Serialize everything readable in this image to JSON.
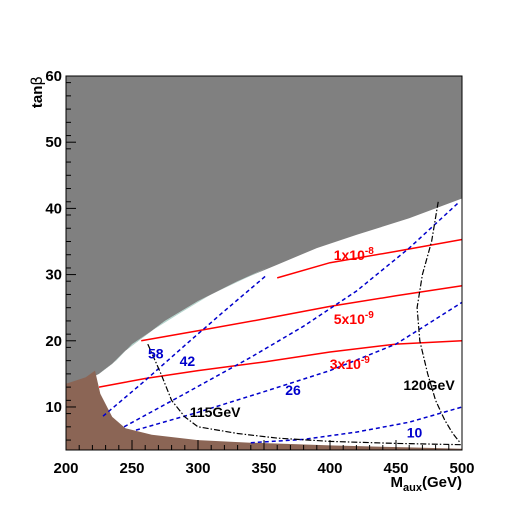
{
  "chart_data": {
    "type": "line",
    "xlabel": "M",
    "xlabel_sub": "aux",
    "xlabel_unit": "(GeV)",
    "ylabel": "tan",
    "ylabel_symbol": "β",
    "xlim": [
      200,
      500
    ],
    "ylim": [
      3.5,
      60
    ],
    "xticks": [
      200,
      250,
      300,
      350,
      400,
      450,
      500
    ],
    "yticks": [
      10,
      20,
      30,
      40,
      50,
      60
    ],
    "grid": false,
    "colors": {
      "excluded_gray": "#808080",
      "excluded_brown": "#8b6555",
      "teal_band": "#b3d4cc",
      "red_contour": "#ff0000",
      "blue_contour": "#0000cc",
      "higgs_contour": "#000000"
    },
    "regions": [
      {
        "id": "gray",
        "points": [
          [
            200,
            60
          ],
          [
            500,
            60
          ],
          [
            500,
            41.5
          ],
          [
            460,
            38.5
          ],
          [
            420,
            36
          ],
          [
            390,
            34
          ],
          [
            360,
            31.5
          ],
          [
            330,
            29
          ],
          [
            300,
            26
          ],
          [
            275,
            23
          ],
          [
            255,
            20
          ],
          [
            245,
            18.5
          ],
          [
            235,
            16.5
          ],
          [
            225,
            15
          ],
          [
            215,
            14
          ],
          [
            200,
            13
          ]
        ]
      },
      {
        "id": "teal",
        "points": [
          [
            225,
            15
          ],
          [
            235,
            16.5
          ],
          [
            245,
            18.5
          ],
          [
            255,
            20
          ],
          [
            275,
            23
          ],
          [
            300,
            26
          ],
          [
            330,
            29
          ],
          [
            352,
            31
          ],
          [
            345,
            30.3
          ],
          [
            310,
            27
          ],
          [
            285,
            24
          ],
          [
            265,
            21.5
          ],
          [
            250,
            19.5
          ],
          [
            238,
            17
          ],
          [
            228,
            15.5
          ]
        ]
      },
      {
        "id": "brown",
        "points": [
          [
            200,
            13.5
          ],
          [
            215,
            14.5
          ],
          [
            222,
            15.5
          ],
          [
            226,
            12
          ],
          [
            235,
            8.5
          ],
          [
            245,
            6.8
          ],
          [
            265,
            5.8
          ],
          [
            300,
            5
          ],
          [
            340,
            4.6
          ],
          [
            400,
            4.2
          ],
          [
            460,
            3.9
          ],
          [
            500,
            3.7
          ],
          [
            500,
            3.5
          ],
          [
            200,
            3.5
          ]
        ]
      }
    ],
    "series": [
      {
        "name": "1x10",
        "exponent": "-8",
        "style": "red",
        "x": [
          360,
          400,
          450,
          500
        ],
        "values": [
          29.5,
          31.8,
          33.5,
          35.3
        ]
      },
      {
        "name": "5x10",
        "exponent": "-9",
        "style": "red",
        "x": [
          257,
          300,
          350,
          400,
          450,
          500
        ],
        "values": [
          20,
          21.5,
          23.3,
          25.2,
          26.8,
          28.3
        ]
      },
      {
        "name": "3x10",
        "exponent": "-9",
        "style": "red",
        "x": [
          225,
          260,
          300,
          350,
          400,
          450,
          500
        ],
        "values": [
          13,
          14.3,
          15.5,
          16.8,
          18.3,
          19.5,
          20
        ]
      },
      {
        "name": "58",
        "style": "blue",
        "x": [
          228,
          260,
          290,
          320,
          352
        ],
        "values": [
          8.6,
          14,
          19.3,
          24.5,
          29.9
        ]
      },
      {
        "name": "42",
        "style": "blue",
        "x": [
          244,
          290,
          340,
          380,
          420,
          460,
          498
        ],
        "values": [
          7,
          12,
          17.5,
          22.2,
          27.5,
          34,
          41
        ]
      },
      {
        "name": "26",
        "style": "blue",
        "x": [
          253,
          300,
          350,
          400,
          450,
          500
        ],
        "values": [
          6.5,
          9.2,
          12.3,
          15.5,
          19.5,
          25.8
        ]
      },
      {
        "name": "10",
        "style": "blue",
        "x": [
          340,
          380,
          420,
          460,
          500
        ],
        "values": [
          4.6,
          5.1,
          6.2,
          7.7,
          10
        ]
      },
      {
        "name": "115GeV",
        "style": "black",
        "x": [
          262,
          272,
          280,
          290,
          300,
          330,
          360,
          400,
          450,
          500
        ],
        "values": [
          19.5,
          15,
          11,
          8.5,
          7,
          6,
          5.3,
          4.8,
          4.5,
          4.3
        ]
      },
      {
        "name": "120GeV",
        "style": "black",
        "x": [
          482,
          477,
          470,
          466,
          468,
          474,
          480,
          487,
          493,
          499
        ],
        "values": [
          41,
          35,
          30,
          25,
          20,
          15,
          11,
          8,
          6,
          4.5
        ]
      }
    ],
    "annotations": [
      {
        "text": "1x10",
        "exp": "-8",
        "color": "red",
        "x": 418,
        "y": 32.2
      },
      {
        "text": "5x10",
        "exp": "-9",
        "color": "red",
        "x": 418,
        "y": 22.5
      },
      {
        "text": "3x10",
        "exp": "-9",
        "color": "red",
        "x": 415,
        "y": 15.7
      },
      {
        "text": "58",
        "color": "blue",
        "x": 268,
        "y": 17.3
      },
      {
        "text": "42",
        "color": "blue",
        "x": 292,
        "y": 16.2
      },
      {
        "text": "26",
        "color": "blue",
        "x": 372,
        "y": 11.8
      },
      {
        "text": "10",
        "color": "blue",
        "x": 464,
        "y": 5.4
      },
      {
        "text": "115GeV",
        "color": "black",
        "x": 313,
        "y": 8.5
      },
      {
        "text": "120GeV",
        "color": "black",
        "x": 475,
        "y": 12.6
      }
    ]
  }
}
